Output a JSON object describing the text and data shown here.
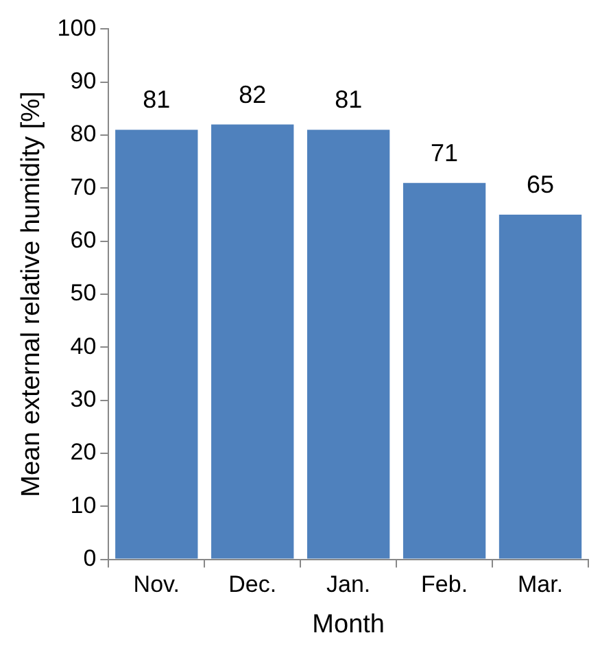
{
  "chart_data": {
    "type": "bar",
    "xlabel": "Month",
    "ylabel": "Mean external relative humidity [%]",
    "categories": [
      "Nov.",
      "Dec.",
      "Jan.",
      "Feb.",
      "Mar."
    ],
    "values": [
      81,
      82,
      81,
      71,
      65
    ],
    "color": "#4f81bd",
    "ylim": [
      0,
      100
    ],
    "yticks": [
      0,
      10,
      20,
      30,
      40,
      50,
      60,
      70,
      80,
      90,
      100
    ],
    "grid": false,
    "legend": false,
    "data_labels": true
  }
}
